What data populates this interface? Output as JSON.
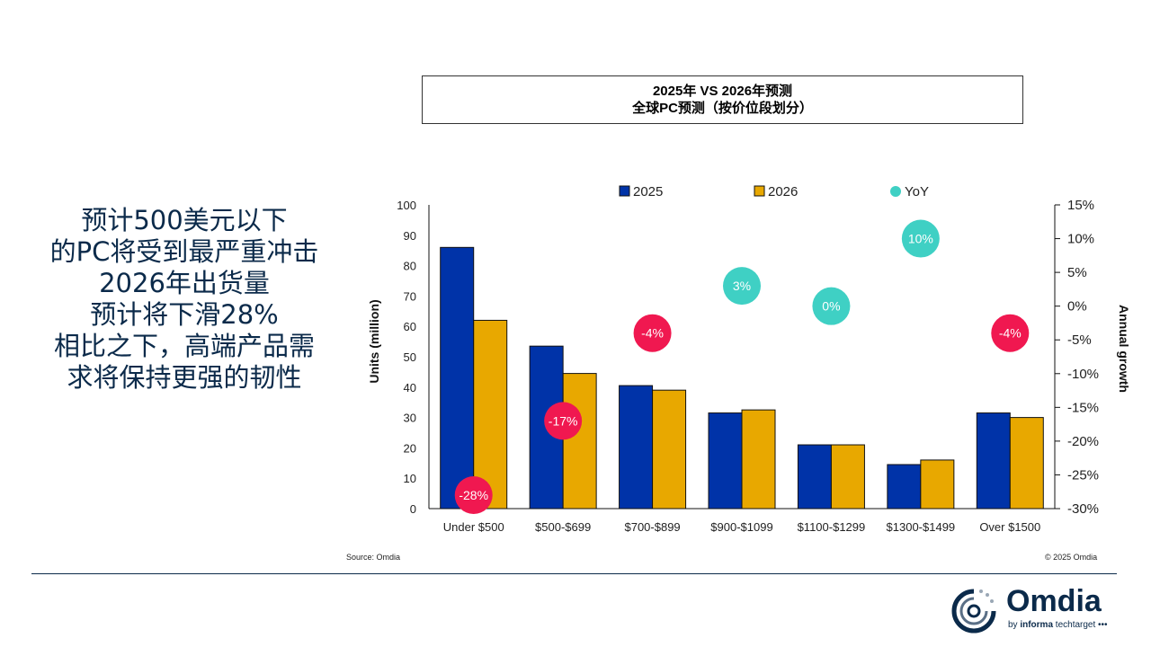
{
  "slide": {
    "headline_lines": [
      "预计500美元以下",
      "的PC将受到最严重冲击",
      "2026年出货量",
      "预计将下滑28%",
      "相比之下，高端产品需",
      "求将保持更强的韧性"
    ],
    "source": "Source: Omdia",
    "copyright": "© 2025 Omdia",
    "logo": {
      "word": "Omdia",
      "sub_prefix": "by ",
      "sub_bold": "informa",
      "sub_suffix": " techtarget"
    }
  },
  "chart_data": {
    "type": "bar",
    "title": "2025年 VS 2026年预测",
    "subtitle": "全球PC预测（按价位段划分）",
    "categories": [
      "Under $500",
      "$500-$699",
      "$700-$899",
      "$900-$1099",
      "$1100-$1299",
      "$1300-$1499",
      "Over $1500"
    ],
    "series": [
      {
        "name": "2025",
        "color": "#0033a8",
        "values": [
          86,
          53.5,
          40.5,
          31.5,
          21,
          14.5,
          31.5
        ]
      },
      {
        "name": "2026",
        "color": "#e8a800",
        "values": [
          62,
          44.5,
          39,
          32.5,
          21,
          16,
          30
        ]
      }
    ],
    "yoy": {
      "name": "YoY",
      "values": [
        -28,
        -17,
        -4,
        3,
        0,
        10,
        -4
      ],
      "labels": [
        "-28%",
        "-17%",
        "-4%",
        "3%",
        "0%",
        "10%",
        "-4%"
      ],
      "positive_color": "#3fd0c4",
      "negative_color": "#f01850"
    },
    "ylabel": "Units (million)",
    "y2label": "Annual growth",
    "ylim": [
      0,
      100
    ],
    "yticks": [
      "0",
      "10",
      "20",
      "30",
      "40",
      "50",
      "60",
      "70",
      "80",
      "90",
      "100"
    ],
    "y2lim": [
      -30,
      15
    ],
    "y2ticks": [
      "-30%",
      "-25%",
      "-20%",
      "-15%",
      "-10%",
      "-5%",
      "0%",
      "5%",
      "10%",
      "15%"
    ],
    "grid": false,
    "legend": "top"
  }
}
